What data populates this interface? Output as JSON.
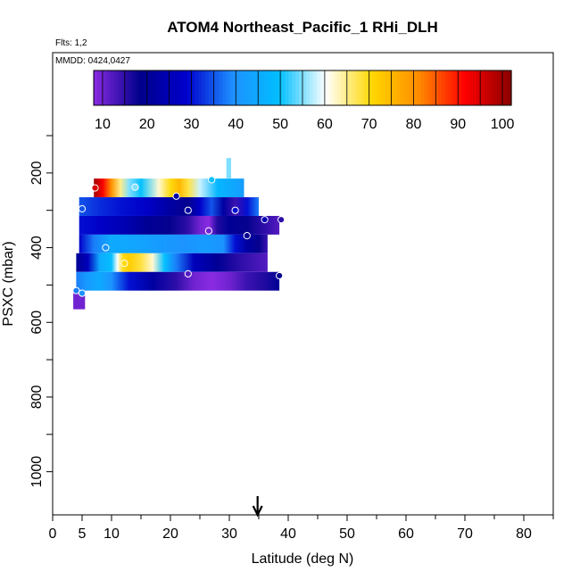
{
  "chart_data": {
    "type": "heatmap",
    "title": "ATOM4 Northeast_Pacific_1 RHi_DLH",
    "flights_label": "Flts: 1,2",
    "dates_label": "MMDD: 0424,0427",
    "xlabel": "Latitude (deg N)",
    "ylabel": "PSXC (mbar)",
    "xlim": [
      0,
      85
    ],
    "ylim": [
      1000,
      100
    ],
    "y_scale": "linear, inverted",
    "x_ticks": [
      0,
      5,
      10,
      20,
      30,
      40,
      50,
      60,
      70,
      80
    ],
    "x_tick_labels": [
      "0",
      "5",
      "10",
      "20",
      "30",
      "40",
      "50",
      "60",
      "70",
      "80"
    ],
    "y_ticks": [
      200,
      400,
      600,
      800,
      1000
    ],
    "y_tick_labels": [
      "200",
      "400",
      "600",
      "800",
      "1000"
    ],
    "colorbar": {
      "min": 8,
      "max": 102,
      "ticks": [
        10,
        20,
        30,
        40,
        50,
        60,
        70,
        80,
        90,
        100
      ],
      "tick_labels": [
        "10",
        "20",
        "30",
        "40",
        "50",
        "60",
        "70",
        "80",
        "90",
        "100"
      ],
      "colors": [
        "#8a2be2",
        "#00008b",
        "#0000cd",
        "#1e90ff",
        "#00bfff",
        "#ffffff",
        "#ffd700",
        "#ff8c00",
        "#ff0000",
        "#8b0000"
      ]
    },
    "marker_latitude": 34.8,
    "bands": [
      {
        "p_top": 215,
        "p_bot": 265,
        "x_start": 7,
        "x_end": 32.5,
        "stops": [
          [
            7,
            100
          ],
          [
            8.5,
            92
          ],
          [
            10,
            80
          ],
          [
            11.5,
            65
          ],
          [
            13,
            55
          ],
          [
            15,
            50
          ],
          [
            18,
            62
          ],
          [
            20,
            70
          ],
          [
            21.5,
            75
          ],
          [
            23,
            68
          ],
          [
            25,
            58
          ],
          [
            28,
            48
          ],
          [
            32.5,
            42
          ]
        ]
      },
      {
        "p_top": 265,
        "p_bot": 315,
        "x_start": 4.5,
        "x_end": 35,
        "stops": [
          [
            4.5,
            35
          ],
          [
            8,
            32
          ],
          [
            12,
            30
          ],
          [
            16,
            28
          ],
          [
            20,
            22
          ],
          [
            23,
            18
          ],
          [
            25,
            28
          ],
          [
            27,
            35
          ],
          [
            29,
            22
          ],
          [
            31,
            14
          ],
          [
            33,
            30
          ],
          [
            35,
            38
          ]
        ]
      },
      {
        "p_top": 315,
        "p_bot": 365,
        "x_start": 4.5,
        "x_end": 38.5,
        "stops": [
          [
            4.5,
            30
          ],
          [
            8,
            28
          ],
          [
            12,
            25
          ],
          [
            16,
            20
          ],
          [
            20,
            18
          ],
          [
            23,
            15
          ],
          [
            25,
            10
          ],
          [
            26.5,
            8
          ],
          [
            28,
            16
          ],
          [
            30,
            20
          ],
          [
            33,
            18
          ],
          [
            36,
            15
          ],
          [
            38.5,
            12
          ]
        ]
      },
      {
        "p_top": 365,
        "p_bot": 415,
        "x_start": 4.5,
        "x_end": 36.5,
        "stops": [
          [
            4.5,
            28
          ],
          [
            7,
            38
          ],
          [
            10,
            45
          ],
          [
            14,
            44
          ],
          [
            18,
            42
          ],
          [
            22,
            40
          ],
          [
            26,
            42
          ],
          [
            29,
            40
          ],
          [
            31,
            30
          ],
          [
            33,
            22
          ],
          [
            35,
            18
          ],
          [
            36.5,
            14
          ]
        ]
      },
      {
        "p_top": 415,
        "p_bot": 465,
        "x_start": 4,
        "x_end": 36.5,
        "stops": [
          [
            4,
            20
          ],
          [
            6,
            26
          ],
          [
            8,
            45
          ],
          [
            10,
            50
          ],
          [
            11,
            60
          ],
          [
            12,
            70
          ],
          [
            13,
            72
          ],
          [
            15,
            68
          ],
          [
            17,
            62
          ],
          [
            19,
            50
          ],
          [
            21,
            38
          ],
          [
            24,
            26
          ],
          [
            28,
            20
          ],
          [
            32,
            15
          ],
          [
            36.5,
            12
          ]
        ]
      },
      {
        "p_top": 465,
        "p_bot": 515,
        "x_start": 4,
        "x_end": 38.5,
        "stops": [
          [
            4,
            38
          ],
          [
            6,
            42
          ],
          [
            8,
            45
          ],
          [
            10,
            40
          ],
          [
            13,
            30
          ],
          [
            17,
            22
          ],
          [
            21,
            15
          ],
          [
            24,
            10
          ],
          [
            27,
            8
          ],
          [
            30,
            10
          ],
          [
            33,
            14
          ],
          [
            36,
            16
          ],
          [
            38.5,
            20
          ]
        ]
      },
      {
        "p_top": 515,
        "p_bot": 565,
        "x_start": 3.5,
        "x_end": 5.5,
        "stops": [
          [
            3.5,
            10
          ],
          [
            5.5,
            10
          ]
        ]
      },
      {
        "p_top": 160,
        "p_bot": 215,
        "x_start": 29.5,
        "x_end": 30.3,
        "stops": [
          [
            29.5,
            55
          ],
          [
            30.3,
            55
          ]
        ]
      }
    ],
    "points": [
      {
        "lat": 7.2,
        "p": 240,
        "value": 95
      },
      {
        "lat": 14,
        "p": 238,
        "value": 55
      },
      {
        "lat": 21,
        "p": 262,
        "value": 22
      },
      {
        "lat": 27,
        "p": 218,
        "value": 50
      },
      {
        "lat": 5,
        "p": 296,
        "value": 35
      },
      {
        "lat": 23,
        "p": 300,
        "value": 22
      },
      {
        "lat": 31,
        "p": 300,
        "value": 30
      },
      {
        "lat": 36,
        "p": 325,
        "value": 25
      },
      {
        "lat": 38.8,
        "p": 325,
        "value": 15
      },
      {
        "lat": 26.5,
        "p": 355,
        "value": 10
      },
      {
        "lat": 33,
        "p": 368,
        "value": 18
      },
      {
        "lat": 9,
        "p": 400,
        "value": 40
      },
      {
        "lat": 12.2,
        "p": 442,
        "value": 70
      },
      {
        "lat": 23,
        "p": 470,
        "value": 12
      },
      {
        "lat": 38.5,
        "p": 475,
        "value": 18
      },
      {
        "lat": 4,
        "p": 515,
        "value": 38
      },
      {
        "lat": 5,
        "p": 522,
        "value": 40
      }
    ]
  }
}
